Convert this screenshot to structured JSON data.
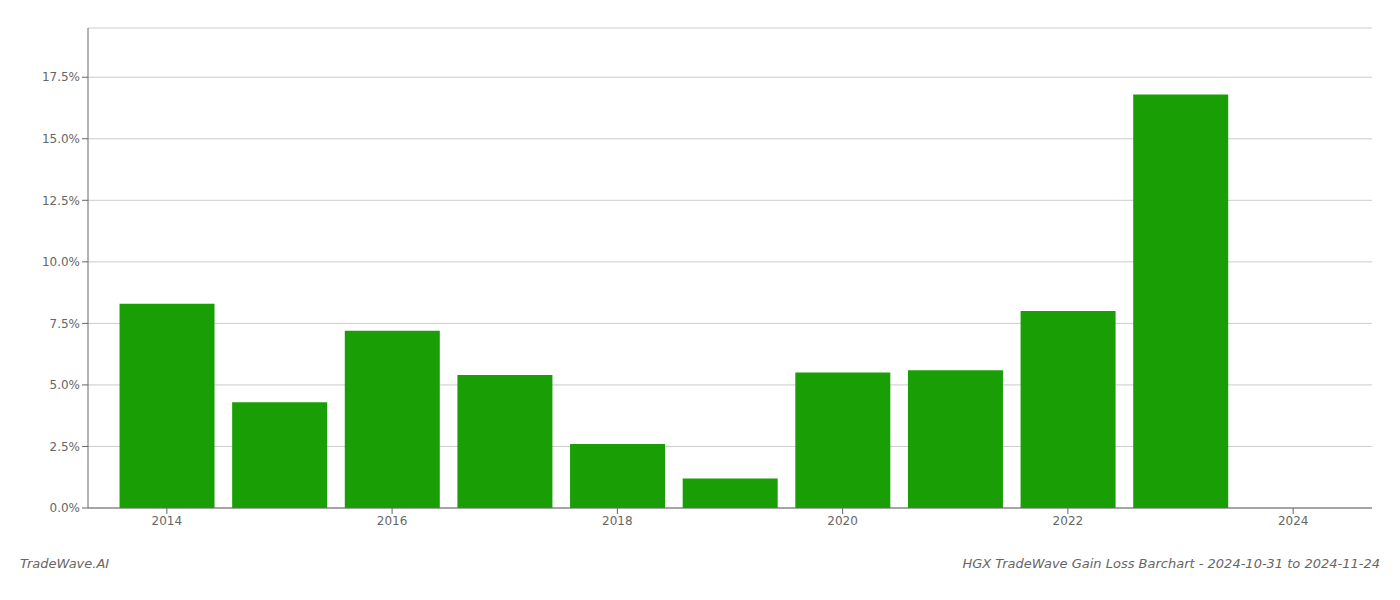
{
  "chart_data": {
    "type": "bar",
    "title": "HGX TradeWave Gain Loss Barchart - 2024-10-31 to 2024-11-24",
    "annotations": [
      "TradeWave.AI"
    ],
    "x": [
      2014,
      2015,
      2016,
      2017,
      2018,
      2019,
      2020,
      2021,
      2022,
      2023
    ],
    "values": [
      0.083,
      0.043,
      0.072,
      0.054,
      0.026,
      0.012,
      0.055,
      0.056,
      0.08,
      0.168
    ],
    "color": "#1a9e06",
    "xlim": [
      2013.3,
      2024.7
    ],
    "xticks": [
      2014,
      2016,
      2018,
      2020,
      2022,
      2024
    ],
    "ylim": [
      0,
      0.195
    ],
    "yticks": [
      {
        "value": 0.0,
        "label": "0.0%"
      },
      {
        "value": 0.025,
        "label": "2.5%"
      },
      {
        "value": 0.05,
        "label": "5.0%"
      },
      {
        "value": 0.075,
        "label": "7.5%"
      },
      {
        "value": 0.1,
        "label": "10.0%"
      },
      {
        "value": 0.125,
        "label": "12.5%"
      },
      {
        "value": 0.15,
        "label": "15.0%"
      },
      {
        "value": 0.175,
        "label": "17.5%"
      }
    ],
    "grid": true
  }
}
